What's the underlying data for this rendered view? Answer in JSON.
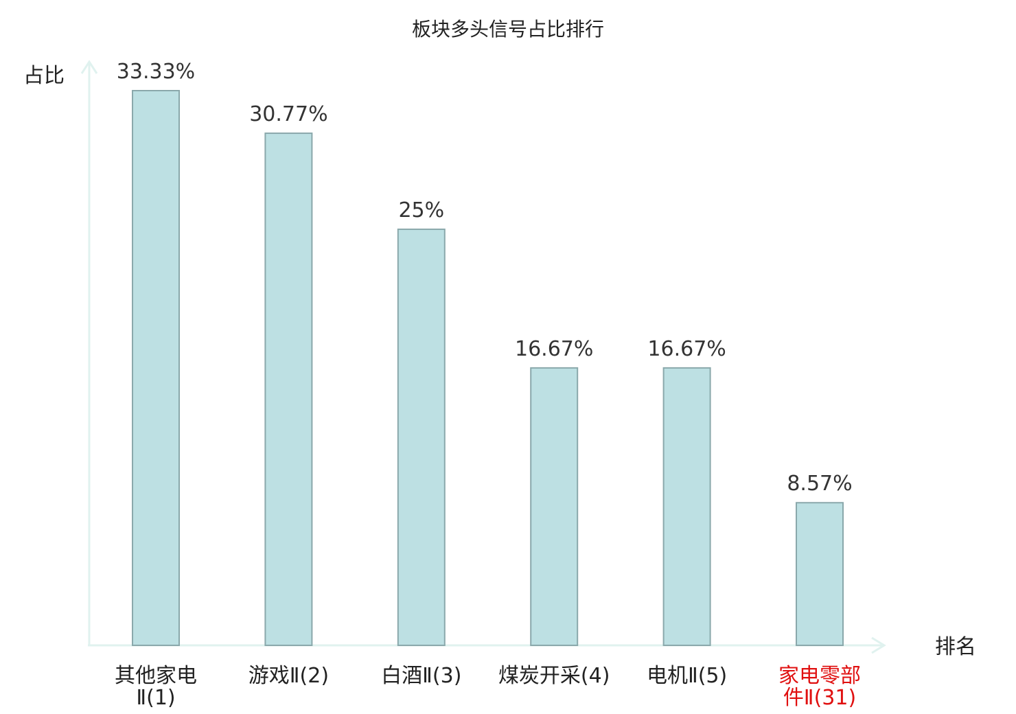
{
  "chart_data": {
    "type": "bar",
    "title": "板块多头信号占比排行",
    "xlabel": "排名",
    "ylabel": "占比",
    "categories": [
      {
        "line1": "其他家电",
        "line2": "Ⅱ(1)",
        "highlight": false
      },
      {
        "line1": "游戏Ⅱ(2)",
        "line2": "",
        "highlight": false
      },
      {
        "line1": "白酒Ⅱ(3)",
        "line2": "",
        "highlight": false
      },
      {
        "line1": "煤炭开采(4)",
        "line2": "",
        "highlight": false
      },
      {
        "line1": "电机Ⅱ(5)",
        "line2": "",
        "highlight": false
      },
      {
        "line1": "家电零部",
        "line2": "件Ⅱ(31)",
        "highlight": true
      }
    ],
    "values": [
      33.33,
      30.77,
      25,
      16.67,
      16.67,
      8.57
    ],
    "value_labels": [
      "33.33%",
      "30.77%",
      "25%",
      "16.67%",
      "16.67%",
      "8.57%"
    ],
    "colors": {
      "bar_fill": "#bde0e3",
      "bar_stroke": "#8aa8ab",
      "axis": "#e0f2ef",
      "highlight_label": "#e01010",
      "label": "#222222"
    }
  }
}
